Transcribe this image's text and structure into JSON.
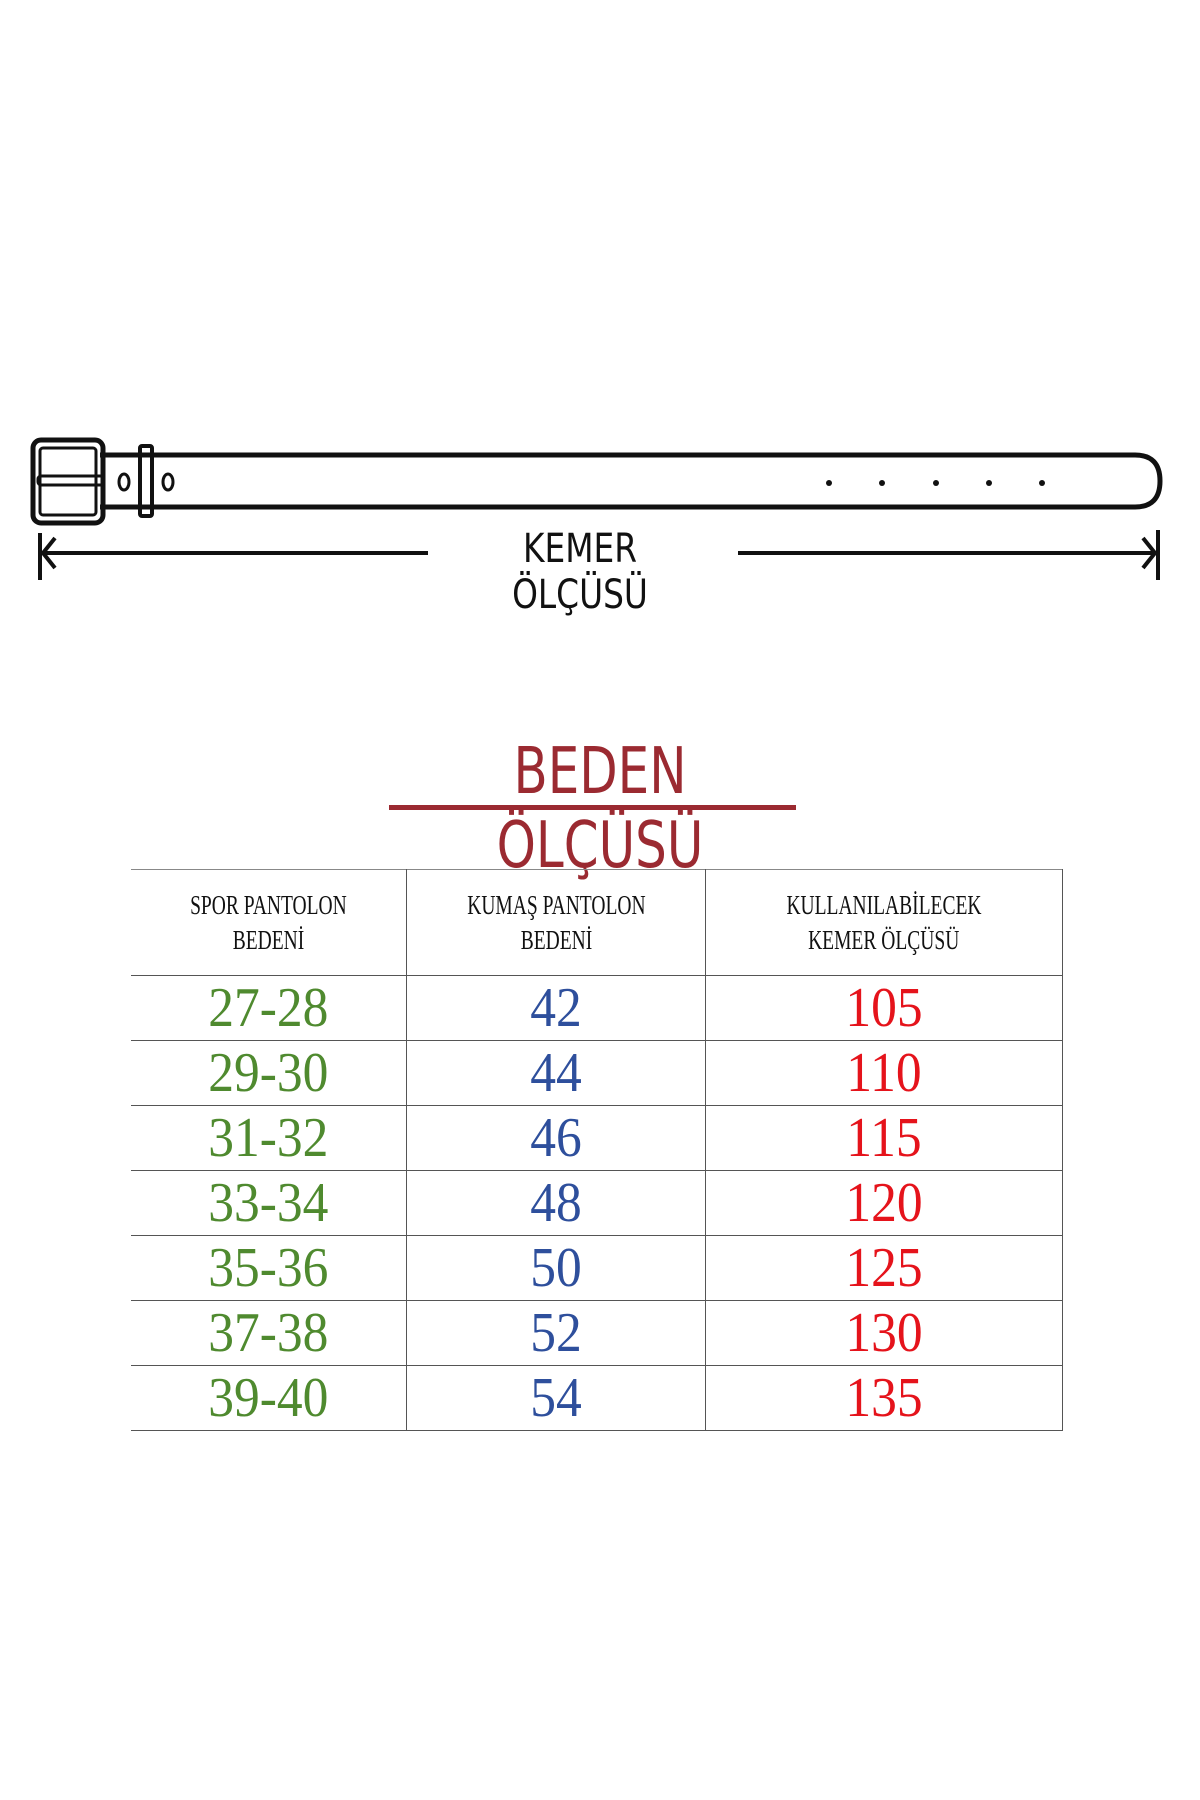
{
  "belt_diagram": {
    "measure_label": "KEMER ÖLÇÜSÜ"
  },
  "size_chart": {
    "title": "BEDEN ÖLÇÜSÜ",
    "title_color": "#9b2a31",
    "headers": [
      "SPOR PANTOLON BEDENİ",
      "KUMAŞ PANTOLON BEDENİ",
      "KULLANILABİLECEK KEMER ÖLÇÜSÜ"
    ],
    "header_lines": [
      [
        "SPOR PANTOLON",
        "BEDENİ"
      ],
      [
        "KUMAŞ PANTOLON",
        "BEDENİ"
      ],
      [
        "KULLANILABİLECEK",
        "KEMER ÖLÇÜSÜ"
      ]
    ],
    "column_colors": [
      "#4f8a2f",
      "#2e4f9c",
      "#e5131b"
    ],
    "rows": [
      [
        "27-28",
        "42",
        "105"
      ],
      [
        "29-30",
        "44",
        "110"
      ],
      [
        "31-32",
        "46",
        "115"
      ],
      [
        "33-34",
        "48",
        "120"
      ],
      [
        "35-36",
        "50",
        "125"
      ],
      [
        "37-38",
        "52",
        "130"
      ],
      [
        "39-40",
        "54",
        "135"
      ]
    ]
  }
}
